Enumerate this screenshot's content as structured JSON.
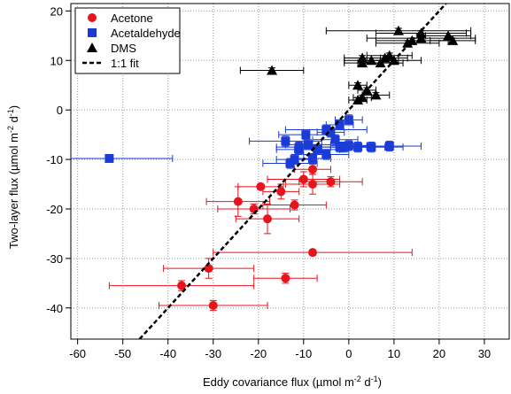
{
  "chart_data": {
    "type": "scatter",
    "xlabel": [
      "Eddy covariance flux (µmol m",
      "-2",
      " d",
      "-1",
      ")"
    ],
    "ylabel": [
      "Two-layer flux (µmol m",
      "-2",
      " d",
      "-1",
      ")"
    ],
    "xlim": [
      -61.5,
      35.5
    ],
    "ylim": [
      -46.3,
      21.5
    ],
    "xticks": [
      -60,
      -50,
      -40,
      -30,
      -20,
      -10,
      0,
      10,
      20,
      30
    ],
    "yticks": [
      -40,
      -30,
      -20,
      -10,
      0,
      10,
      20
    ],
    "grid": true,
    "legend": "upper-left",
    "series": [
      {
        "name": "Acetone",
        "color": "#e8141c",
        "marker": "circle",
        "x": [
          -30,
          -37,
          -31,
          -14,
          -8,
          -24.5,
          -21,
          -18,
          -19.5,
          -15,
          -12,
          -10,
          -8,
          -8,
          -4
        ],
        "values": [
          -39.5,
          -35.5,
          -32,
          -34,
          -28.8,
          -18.5,
          -20,
          -22,
          -15.5,
          -16.5,
          -19.2,
          -14,
          -15,
          -12,
          -14.5
        ],
        "xerr": [
          12,
          16,
          10,
          7,
          22,
          7,
          8,
          7,
          5,
          4,
          7,
          8,
          6,
          4,
          7
        ],
        "yerr": [
          1,
          1,
          2,
          1,
          0.5,
          3,
          1,
          3,
          0.5,
          1.5,
          1,
          1.5,
          2,
          1,
          1
        ]
      },
      {
        "name": "Acetaldehyde",
        "color": "#1a3bd6",
        "marker": "square",
        "x": [
          -53,
          -13,
          -12,
          -11,
          -11,
          -9.5,
          -9,
          -8,
          -7,
          -5,
          -5,
          -4,
          -3,
          -2,
          -1,
          0,
          0,
          -2,
          2,
          5,
          9,
          -14
        ],
        "values": [
          -9.8,
          -10.8,
          -10,
          -7.5,
          -8,
          -5,
          -7,
          -9.8,
          -8,
          -9,
          -4,
          -4.5,
          -6,
          -7.5,
          -7.5,
          -7.2,
          -2,
          -3,
          -7.5,
          -7.5,
          -7.3,
          -6.3
        ],
        "xerr": [
          14,
          6,
          4,
          5,
          5,
          6,
          5,
          4,
          5,
          5,
          9,
          3,
          5,
          6,
          5,
          4,
          3,
          3,
          6,
          7,
          7,
          8
        ],
        "yerr": [
          0.5,
          1,
          1,
          1,
          1,
          1,
          1,
          1,
          1,
          1,
          1,
          1,
          1,
          1,
          1,
          1,
          1,
          1,
          1,
          1,
          1,
          1
        ]
      },
      {
        "name": "DMS",
        "color": "#000000",
        "marker": "triangle",
        "x": [
          -17,
          2,
          3,
          4,
          6,
          2,
          3,
          5,
          7,
          8,
          10,
          13,
          14,
          11,
          16,
          16,
          22,
          23,
          3,
          9
        ],
        "values": [
          8,
          2,
          2.5,
          4,
          3,
          5,
          9.5,
          10,
          9.5,
          10.5,
          10,
          13.5,
          14,
          16,
          15.5,
          14.5,
          15,
          14,
          10.5,
          11
        ],
        "xerr": [
          7,
          2,
          2,
          2,
          3,
          2,
          4,
          6,
          5,
          5,
          6,
          7,
          8,
          16,
          10,
          12,
          5,
          5,
          4,
          5
        ],
        "yerr": [
          0.5,
          0.5,
          0.5,
          0.5,
          0.5,
          0.5,
          0.5,
          0.5,
          0.5,
          0.5,
          0.5,
          0.5,
          0.5,
          0.5,
          0.5,
          0.5,
          0.5,
          0.5,
          0.5,
          0.5
        ]
      },
      {
        "name": "1:1 fit",
        "color": "#000000",
        "type": "line",
        "dash": true,
        "x": [
          -46.3,
          21.5
        ],
        "values": [
          -46.3,
          21.5
        ]
      }
    ]
  }
}
